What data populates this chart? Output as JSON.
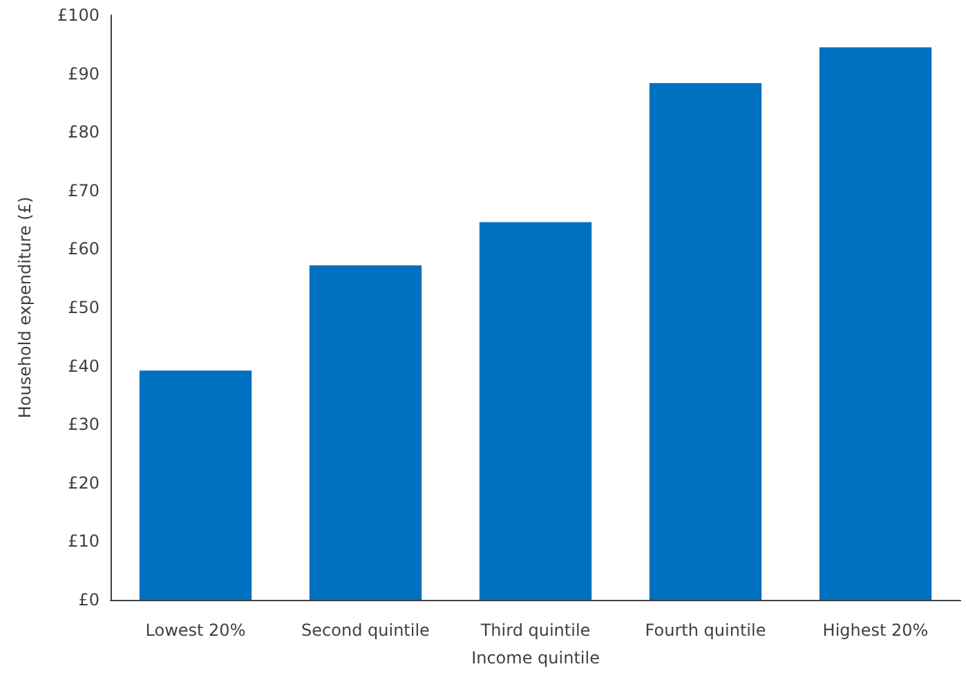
{
  "chart_data": {
    "type": "bar",
    "xlabel": "Income quintile",
    "ylabel": "Household expenditure (£)",
    "categories": [
      "Lowest 20%",
      "Second quintile",
      "Third quintile",
      "Fourth quintile",
      "Highest 20%"
    ],
    "values": [
      39.2,
      57.2,
      64.6,
      88.4,
      94.5
    ],
    "color": "#0070c0",
    "ylim": [
      0,
      100
    ],
    "yticks": [
      {
        "value": 0,
        "label": "£0"
      },
      {
        "value": 10,
        "label": "£10"
      },
      {
        "value": 20,
        "label": "£20"
      },
      {
        "value": 30,
        "label": "£30"
      },
      {
        "value": 40,
        "label": "£40"
      },
      {
        "value": 50,
        "label": "£50"
      },
      {
        "value": 60,
        "label": "£60"
      },
      {
        "value": 70,
        "label": "£70"
      },
      {
        "value": 80,
        "label": "£80"
      },
      {
        "value": 90,
        "label": "£90"
      },
      {
        "value": 100,
        "label": "£100"
      }
    ],
    "grid": false
  }
}
